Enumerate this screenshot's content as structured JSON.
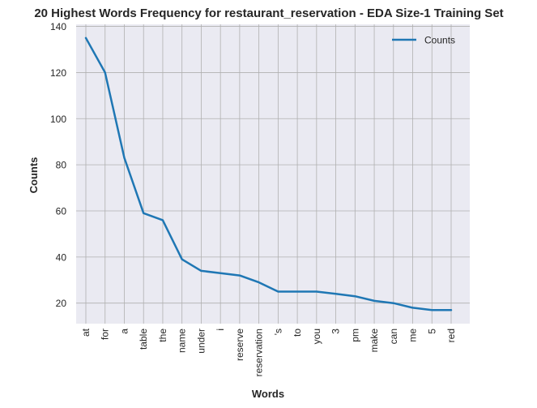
{
  "chart_data": {
    "type": "line",
    "title": "20 Highest Words Frequency for restaurant_reservation - EDA Size-1 Training Set",
    "xlabel": "Words",
    "ylabel": "Counts",
    "categories": [
      "at",
      "for",
      "a",
      "table",
      "the",
      "name",
      "under",
      "i",
      "reserve",
      "reservation",
      "'s",
      "to",
      "you",
      "3",
      "pm",
      "make",
      "can",
      "me",
      "5",
      "red"
    ],
    "series": [
      {
        "name": "Counts",
        "values": [
          135,
          120,
          83,
          59,
          56,
          39,
          34,
          33,
          32,
          29,
          25,
          25,
          25,
          24,
          23,
          21,
          20,
          18,
          17,
          17
        ]
      }
    ],
    "yticks": [
      20,
      40,
      60,
      80,
      100,
      120,
      140
    ],
    "ylim": [
      11.1,
      140.9
    ],
    "grid": true,
    "legend_position": "top-right",
    "colors": {
      "line": "#1f77b4",
      "plot_background": "#eaeaf2",
      "grid": "#b0b0b0"
    }
  }
}
